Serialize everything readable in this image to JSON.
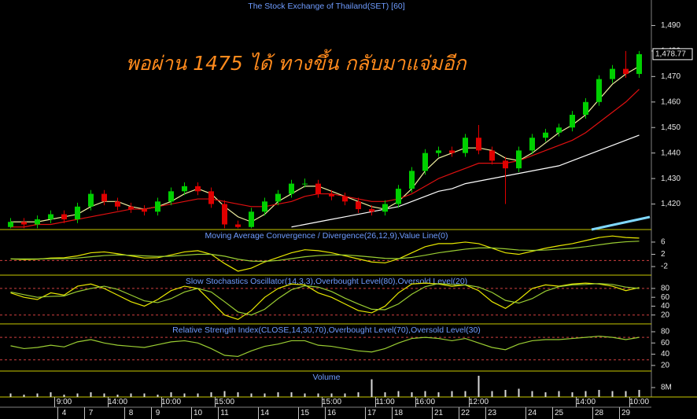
{
  "chart_data": [
    {
      "type": "candlestick",
      "title": "The Stock Exchange of Thailand(SET) [60]",
      "annotation": "พอผ่าน 1475 ได้ ทางขึ้น กลับมาแจ่มอีก",
      "up_color": "#00d000",
      "down_color": "#e00000",
      "open": [
        1411,
        1413,
        1412,
        1414,
        1416,
        1414,
        1419,
        1424,
        1421,
        1419,
        1418,
        1417,
        1421,
        1425,
        1427,
        1425,
        1420,
        1412,
        1411,
        1417,
        1421,
        1424,
        1428,
        1428,
        1424,
        1423,
        1421,
        1418,
        1417,
        1420,
        1426,
        1433,
        1440,
        1441,
        1440,
        1446,
        1441,
        1437,
        1434,
        1441,
        1446,
        1448,
        1450,
        1455,
        1460,
        1469,
        1473,
        1471
      ],
      "high": [
        1414.5,
        1414.5,
        1415.5,
        1417.5,
        1417.5,
        1420.5,
        1425.5,
        1425.5,
        1422.5,
        1420.5,
        1419.5,
        1422.5,
        1426.5,
        1428.5,
        1428.5,
        1426.5,
        1421.5,
        1413.5,
        1418.5,
        1422.5,
        1425.5,
        1429.5,
        1430,
        1429.5,
        1425.5,
        1424.5,
        1422.5,
        1419.5,
        1421.5,
        1427.5,
        1434.5,
        1441.5,
        1442.5,
        1442.5,
        1447.5,
        1451,
        1442.5,
        1438.5,
        1442.5,
        1447.5,
        1449.5,
        1451.5,
        1456.5,
        1461.5,
        1470.5,
        1474.5,
        1480,
        1480
      ],
      "low": [
        1410.5,
        1410.5,
        1410.5,
        1412.5,
        1412.5,
        1412.5,
        1417.5,
        1419.5,
        1417.5,
        1416.5,
        1415.5,
        1415.5,
        1419.5,
        1423.5,
        1423.5,
        1418.5,
        1410.5,
        1410.5,
        1410.5,
        1415.5,
        1419.5,
        1422.5,
        1426.5,
        1422.5,
        1421.5,
        1419.5,
        1416.5,
        1415.5,
        1415.5,
        1418.5,
        1424.5,
        1431.5,
        1438.5,
        1438.5,
        1438.5,
        1439.5,
        1435.5,
        1420,
        1432.5,
        1439.5,
        1444.5,
        1446.5,
        1448.5,
        1453.5,
        1458.5,
        1467.5,
        1469.5,
        1469.5
      ],
      "close": [
        1413,
        1412,
        1414,
        1416,
        1414,
        1419,
        1424,
        1421,
        1419,
        1418,
        1417,
        1421,
        1425,
        1427,
        1425,
        1420,
        1412,
        1411,
        1417,
        1421,
        1424,
        1428,
        1428,
        1424,
        1423,
        1421,
        1418,
        1417,
        1420,
        1426,
        1433,
        1440,
        1441,
        1440,
        1446,
        1441,
        1437,
        1434,
        1441,
        1446,
        1448,
        1450,
        1455,
        1460,
        1469,
        1473,
        1471,
        1478.77
      ],
      "overlays": [
        {
          "color": "#f0f0a0",
          "values": [
            1413,
            1413,
            1413,
            1414,
            1415,
            1416,
            1419,
            1421,
            1421,
            1419,
            1418,
            1419,
            1421,
            1424,
            1426,
            1424,
            1419,
            1415,
            1413,
            1416,
            1421,
            1424,
            1427,
            1427,
            1425,
            1423,
            1421,
            1419,
            1418,
            1421,
            1426,
            1433,
            1438,
            1440,
            1442,
            1442,
            1441,
            1438,
            1437,
            1440,
            1444,
            1448,
            1451,
            1455,
            1461,
            1467,
            1471,
            1474
          ]
        },
        {
          "color": "#e01010",
          "values": [
            1411,
            1411,
            1412,
            1412,
            1413,
            1414,
            1415,
            1416,
            1417,
            1418,
            1418,
            1419,
            1420,
            1421,
            1422,
            1422,
            1421,
            1420,
            1419,
            1419,
            1420,
            1421,
            1423,
            1424,
            1424,
            1423,
            1422,
            1421,
            1421,
            1422,
            1424,
            1427,
            1430,
            1432,
            1434,
            1436,
            1436,
            1436,
            1437,
            1439,
            1441,
            1443,
            1445,
            1448,
            1452,
            1456,
            1460,
            1465
          ]
        },
        {
          "color": "#ffffff",
          "values": [
            null,
            null,
            null,
            null,
            null,
            null,
            null,
            null,
            null,
            null,
            null,
            null,
            null,
            null,
            null,
            null,
            null,
            null,
            null,
            null,
            null,
            1411,
            1412,
            1413,
            1414,
            1415,
            1416,
            1417,
            1418,
            1419,
            1421,
            1423,
            1425,
            1426,
            1428,
            1429,
            1430,
            1431,
            1432,
            1433,
            1434,
            1435,
            1437,
            1439,
            1441,
            1443,
            1445,
            1447
          ]
        }
      ],
      "last_price": {
        "value": 1478.77,
        "label": "1,478.77"
      },
      "ylim": [
        1410,
        1500
      ],
      "yticks": [
        {
          "value": 1420,
          "label": "1,420"
        },
        {
          "value": 1430,
          "label": "1,430"
        },
        {
          "value": 1440,
          "label": "1,440"
        },
        {
          "value": 1450,
          "label": "1,450"
        },
        {
          "value": 1460,
          "label": "1,460"
        },
        {
          "value": 1470,
          "label": "1,470"
        },
        {
          "value": 1480,
          "label": "1,480"
        },
        {
          "value": 1490,
          "label": "1,490"
        }
      ]
    },
    {
      "type": "line",
      "title": "Moving Average Convergence / Divergence(26,12,9),Value Line(0)",
      "levels": [
        0
      ],
      "series": [
        {
          "color": "#e8e800",
          "values": [
            0.5,
            0.3,
            0.4,
            0.8,
            0.9,
            1.5,
            2.5,
            2.8,
            2.2,
            1.5,
            0.8,
            0.9,
            1.8,
            2.8,
            3.2,
            2.0,
            -1.0,
            -3.5,
            -2.5,
            -0.5,
            1.0,
            2.5,
            3.5,
            3.2,
            2.5,
            1.5,
            0.5,
            -0.5,
            -0.8,
            0.5,
            2.5,
            4.5,
            5.5,
            5.5,
            6.0,
            5.5,
            4.0,
            2.5,
            2.0,
            3.0,
            4.0,
            4.8,
            5.5,
            6.5,
            7.5,
            8.0,
            7.5,
            7.3
          ]
        },
        {
          "color": "#9acd32",
          "values": [
            0.5,
            0.5,
            0.5,
            0.6,
            0.6,
            0.8,
            1.2,
            1.6,
            1.8,
            1.7,
            1.5,
            1.3,
            1.4,
            1.7,
            2.0,
            2.0,
            1.4,
            0.4,
            -0.2,
            -0.3,
            0,
            0.6,
            1.2,
            1.6,
            1.8,
            1.8,
            1.5,
            1.1,
            0.7,
            0.6,
            1.0,
            1.7,
            2.5,
            3.1,
            3.7,
            4.1,
            4.1,
            3.8,
            3.4,
            3.3,
            3.4,
            3.7,
            4.0,
            4.5,
            5.1,
            5.7,
            6.1,
            6.3
          ]
        }
      ],
      "ylim": [
        -4.8,
        10.1
      ],
      "yticks": [
        -2,
        2,
        6
      ]
    },
    {
      "type": "line",
      "title": "Slow Stochastics Oscillator(14,3,3),Overbought Level(80),Oversold Level(20)",
      "levels": [
        80,
        20
      ],
      "series": [
        {
          "color": "#e8e800",
          "values": [
            70,
            60,
            55,
            70,
            65,
            85,
            90,
            80,
            65,
            50,
            40,
            55,
            75,
            85,
            80,
            50,
            20,
            10,
            30,
            60,
            80,
            90,
            88,
            70,
            60,
            45,
            30,
            25,
            40,
            70,
            90,
            92,
            90,
            85,
            88,
            75,
            50,
            35,
            55,
            80,
            88,
            85,
            90,
            92,
            90,
            85,
            75,
            82
          ]
        },
        {
          "color": "#9acd32",
          "values": [
            72,
            66,
            60,
            62,
            63,
            73,
            80,
            85,
            78,
            65,
            52,
            48,
            57,
            72,
            80,
            72,
            50,
            27,
            20,
            33,
            57,
            77,
            86,
            83,
            73,
            58,
            45,
            33,
            32,
            45,
            67,
            84,
            91,
            89,
            88,
            83,
            71,
            53,
            47,
            57,
            74,
            84,
            88,
            89,
            91,
            89,
            83,
            80
          ]
        }
      ],
      "ylim": [
        0,
        110
      ],
      "yticks": [
        20,
        40,
        60,
        80
      ]
    },
    {
      "type": "line",
      "title": "Relative Strength Index(CLOSE,14,30,70),Overbought Level(70),Oversold Level(30)",
      "levels": [
        70,
        30
      ],
      "series": [
        {
          "color": "#9acd32",
          "values": [
            55,
            50,
            52,
            56,
            53,
            62,
            66,
            60,
            56,
            54,
            52,
            57,
            62,
            64,
            60,
            50,
            38,
            36,
            46,
            54,
            58,
            64,
            64,
            56,
            54,
            50,
            46,
            44,
            50,
            60,
            68,
            70,
            68,
            64,
            68,
            60,
            52,
            48,
            58,
            64,
            66,
            66,
            68,
            70,
            72,
            70,
            66,
            70
          ]
        }
      ],
      "ylim": [
        10,
        94
      ],
      "yticks": [
        20,
        40,
        60,
        80
      ]
    },
    {
      "type": "bar",
      "title": "Volume",
      "color": "#d8d8d8",
      "values": [
        3,
        2,
        3,
        4,
        2,
        3,
        4,
        3,
        2,
        3,
        3,
        2,
        4,
        3,
        3,
        4,
        5,
        4,
        3,
        3,
        4,
        4,
        3,
        3,
        3,
        3,
        4,
        15,
        4,
        5,
        4,
        5,
        4,
        5,
        5,
        18,
        5,
        6,
        7,
        5,
        4,
        5,
        4,
        5,
        6,
        5,
        5,
        6
      ],
      "categories": [
        null,
        null,
        null,
        null,
        "9:00",
        null,
        null,
        null,
        "14:00",
        null,
        null,
        null,
        "10:00",
        null,
        null,
        null,
        "15:00",
        null,
        null,
        null,
        null,
        null,
        null,
        null,
        "15:00",
        null,
        null,
        null,
        "11:00",
        null,
        null,
        "16:00",
        null,
        null,
        null,
        "12:00",
        null,
        null,
        null,
        null,
        null,
        null,
        null,
        "14:00",
        null,
        null,
        null,
        "10:00"
      ],
      "days": [
        null,
        null,
        null,
        null,
        "4",
        null,
        "7",
        null,
        null,
        "8",
        null,
        "9",
        null,
        null,
        "10",
        null,
        "11",
        null,
        null,
        "14",
        null,
        null,
        "15",
        null,
        "16",
        null,
        null,
        "17",
        null,
        "18",
        null,
        null,
        "21",
        null,
        "22",
        null,
        "23",
        null,
        null,
        "24",
        null,
        "25",
        null,
        null,
        "28",
        null,
        "29",
        null
      ],
      "ylim": [
        0,
        22
      ],
      "yticks": [
        {
          "value": 8,
          "label": "8M"
        }
      ]
    }
  ]
}
